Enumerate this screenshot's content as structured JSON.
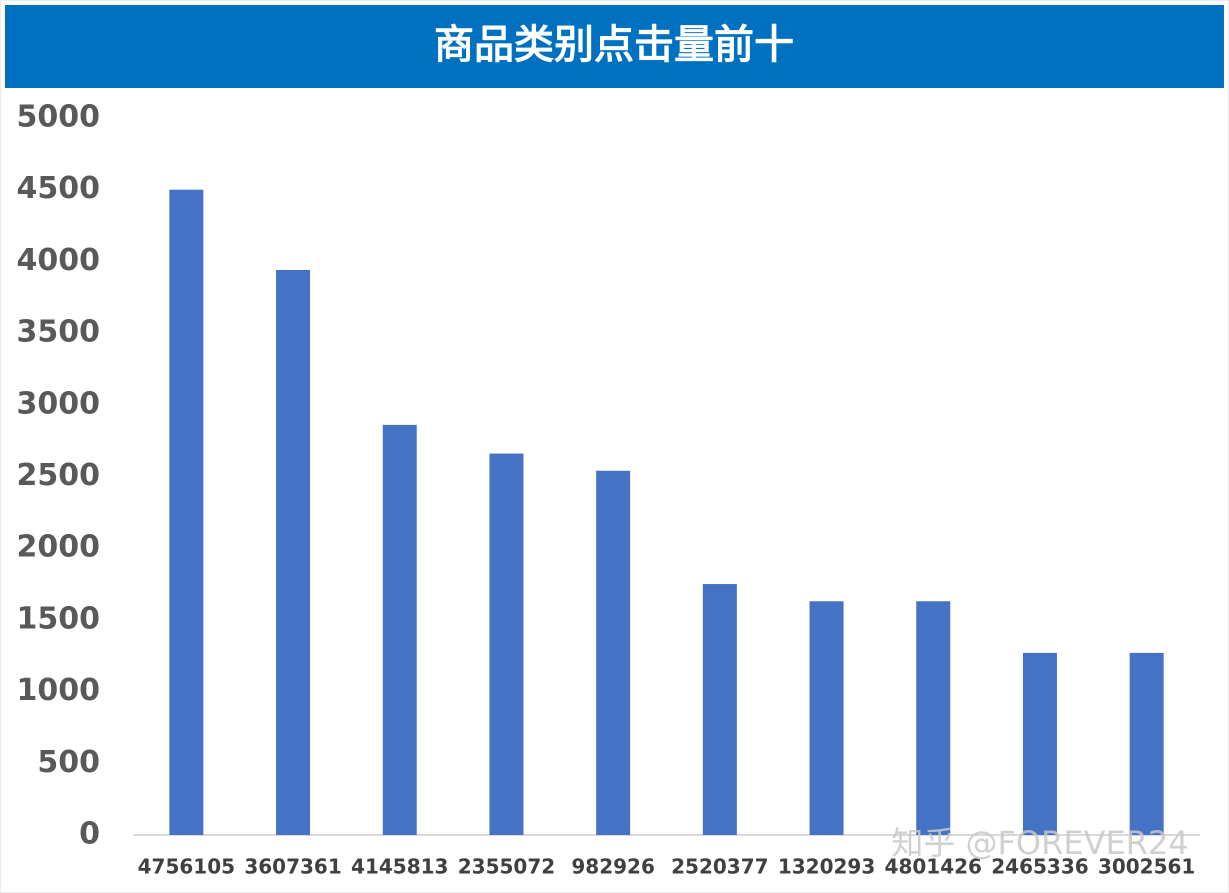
{
  "chart_data": {
    "type": "bar",
    "title": "商品类别点击量前十",
    "categories": [
      "4756105",
      "3607361",
      "4145813",
      "2355072",
      "982926",
      "2520377",
      "1320293",
      "4801426",
      "2465336",
      "3002561"
    ],
    "values": [
      4500,
      3940,
      2860,
      2660,
      2540,
      1750,
      1630,
      1630,
      1270,
      1270
    ],
    "color": "#4472c4",
    "ylim": [
      0,
      5000
    ],
    "yticks": [
      0,
      500,
      1000,
      1500,
      2000,
      2500,
      3000,
      3500,
      4000,
      4500,
      5000
    ],
    "grid": false,
    "watermark": "知乎 @FOREVER24"
  }
}
